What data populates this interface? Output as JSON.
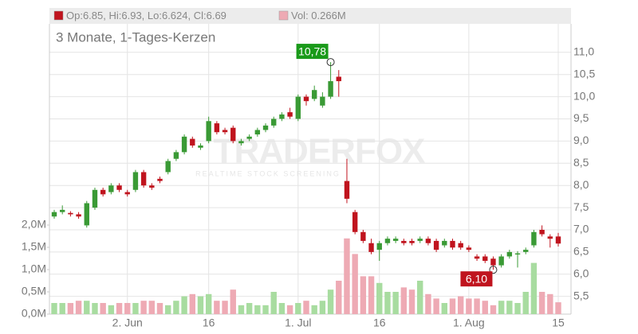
{
  "chart_data": {
    "type": "candlestick",
    "subtitle": "3 Monate, 1-Tages-Kerzen",
    "legend": [
      {
        "text": "Op:6.85, Hi:6.93, Lo:6.624, Cl:6.69",
        "color": "#c0141e"
      },
      {
        "text": "Vol: 0.266M",
        "color": "#eeaab4"
      }
    ],
    "watermark": {
      "title": "TRADERFOX",
      "subtitle": "REALTIME STOCK SCREENING"
    },
    "categories": [
      null,
      null,
      null,
      null,
      null,
      null,
      null,
      null,
      null,
      "2. Jun",
      null,
      null,
      null,
      null,
      null,
      null,
      null,
      null,
      null,
      "16",
      null,
      null,
      null,
      null,
      null,
      null,
      null,
      null,
      null,
      null,
      "1. Jul",
      null,
      null,
      null,
      null,
      null,
      null,
      null,
      null,
      null,
      "16",
      null,
      null,
      null,
      null,
      null,
      null,
      null,
      null,
      null,
      null,
      "1. Aug",
      null,
      null,
      null,
      null,
      null,
      null,
      null,
      null,
      null,
      null,
      "15"
    ],
    "open": [
      7.3,
      7.4,
      7.38,
      7.35,
      7.1,
      7.5,
      7.9,
      7.85,
      8.0,
      7.85,
      7.9,
      8.3,
      8.0,
      8.15,
      8.3,
      8.6,
      8.75,
      9.05,
      8.85,
      9.0,
      9.4,
      9.25,
      9.3,
      8.95,
      9.05,
      9.15,
      9.25,
      9.35,
      9.5,
      9.65,
      9.5,
      10.0,
      9.95,
      9.8,
      10.0,
      10.45,
      8.1,
      7.4,
      6.95,
      6.7,
      6.55,
      6.7,
      6.75,
      6.75,
      6.75,
      6.75,
      6.8,
      6.75,
      6.65,
      6.75,
      6.7,
      6.6,
      6.4,
      6.4,
      6.35,
      6.2,
      6.4,
      6.45,
      6.5,
      6.65,
      7.0,
      6.85,
      6.85
    ],
    "high": [
      7.45,
      7.55,
      7.42,
      7.4,
      7.65,
      7.95,
      7.95,
      8.05,
      8.05,
      7.9,
      8.35,
      8.35,
      8.05,
      8.2,
      8.6,
      8.8,
      9.15,
      9.1,
      8.95,
      9.55,
      9.45,
      9.3,
      9.35,
      9.05,
      9.15,
      9.3,
      9.4,
      9.55,
      9.65,
      9.75,
      10.05,
      10.05,
      10.25,
      10.1,
      10.78,
      10.6,
      8.6,
      7.45,
      7.0,
      6.8,
      6.75,
      6.85,
      6.85,
      6.8,
      6.8,
      6.85,
      6.85,
      6.8,
      6.8,
      6.8,
      6.75,
      6.65,
      6.45,
      6.45,
      6.4,
      6.45,
      6.55,
      6.52,
      6.6,
      7.0,
      7.1,
      6.9,
      6.93
    ],
    "low": [
      7.25,
      7.35,
      7.3,
      7.25,
      7.05,
      7.45,
      7.75,
      7.8,
      7.85,
      7.75,
      7.85,
      7.95,
      7.9,
      8.05,
      8.25,
      8.55,
      8.7,
      8.85,
      8.8,
      8.95,
      9.15,
      9.15,
      8.95,
      8.9,
      9.0,
      9.1,
      9.2,
      9.3,
      9.45,
      9.5,
      9.45,
      9.8,
      9.9,
      9.75,
      9.95,
      10.0,
      7.6,
      6.9,
      6.7,
      6.45,
      6.3,
      6.65,
      6.7,
      6.65,
      6.65,
      6.7,
      6.65,
      6.5,
      6.6,
      6.55,
      6.55,
      6.5,
      6.3,
      6.25,
      6.1,
      6.15,
      6.35,
      6.15,
      6.45,
      6.6,
      6.85,
      6.6,
      6.624
    ],
    "close": [
      7.4,
      7.45,
      7.35,
      7.3,
      7.6,
      7.9,
      7.8,
      8.0,
      7.9,
      7.8,
      8.3,
      8.0,
      7.95,
      8.1,
      8.55,
      8.75,
      9.1,
      8.9,
      8.9,
      9.45,
      9.2,
      9.2,
      9.0,
      9.0,
      9.1,
      9.25,
      9.35,
      9.5,
      9.6,
      9.55,
      10.0,
      9.9,
      10.15,
      10.0,
      10.35,
      10.35,
      7.7,
      6.95,
      6.75,
      6.5,
      6.7,
      6.8,
      6.8,
      6.7,
      6.7,
      6.8,
      6.7,
      6.55,
      6.75,
      6.6,
      6.6,
      6.55,
      6.35,
      6.3,
      6.2,
      6.4,
      6.5,
      6.47,
      6.55,
      6.95,
      6.9,
      6.8,
      6.69
    ],
    "volume": [
      0.25,
      0.25,
      0.25,
      0.3,
      0.3,
      0.25,
      0.25,
      0.2,
      0.25,
      0.25,
      0.25,
      0.3,
      0.3,
      0.25,
      0.2,
      0.3,
      0.4,
      0.45,
      0.4,
      0.45,
      0.3,
      0.3,
      0.55,
      0.2,
      0.25,
      0.2,
      0.2,
      0.5,
      0.25,
      0.2,
      0.25,
      0.3,
      0.2,
      0.3,
      0.55,
      0.75,
      1.7,
      1.35,
      0.85,
      0.85,
      0.7,
      0.5,
      0.5,
      0.6,
      0.55,
      0.75,
      0.45,
      0.35,
      0.25,
      0.35,
      0.4,
      0.35,
      0.35,
      0.3,
      0.2,
      0.3,
      0.3,
      0.25,
      0.5,
      1.15,
      0.5,
      0.45,
      0.266
    ],
    "up_color": "#3a9a35",
    "down_color": "#c0141e",
    "volume_up_color": "#a8dca0",
    "volume_down_color": "#eeaab4",
    "ylim": [
      5.1,
      12.0
    ],
    "yticks": [
      {
        "value": 5.5,
        "label": "5,5"
      },
      {
        "value": 6.0,
        "label": "6,0"
      },
      {
        "value": 6.5,
        "label": "6,5"
      },
      {
        "value": 7.0,
        "label": "7,0"
      },
      {
        "value": 7.5,
        "label": "7,5"
      },
      {
        "value": 8.0,
        "label": "8,0"
      },
      {
        "value": 8.5,
        "label": "8,5"
      },
      {
        "value": 9.0,
        "label": "9,0"
      },
      {
        "value": 9.5,
        "label": "9,5"
      },
      {
        "value": 10.0,
        "label": "10,0"
      },
      {
        "value": 10.5,
        "label": "10,5"
      },
      {
        "value": 11.0,
        "label": "11,0"
      }
    ],
    "y2lim": [
      0,
      6.875
    ],
    "y2ticks": [
      {
        "value": 0,
        "label": "0,0M"
      },
      {
        "value": 0.5,
        "label": "0,5M"
      },
      {
        "value": 1.0,
        "label": "1,0M"
      },
      {
        "value": 1.5,
        "label": "1,5M"
      },
      {
        "value": 2.0,
        "label": "2,0M"
      }
    ],
    "annotations": [
      {
        "value": 10.78,
        "label": "10,78",
        "color": "#1a9a1a"
      },
      {
        "value": 6.1,
        "label": "6,10",
        "color": "#c0141e"
      }
    ],
    "grid": true
  }
}
